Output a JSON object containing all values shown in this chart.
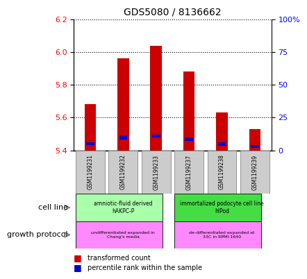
{
  "title": "GDS5080 / 8136662",
  "samples": [
    "GSM1199231",
    "GSM1199232",
    "GSM1199233",
    "GSM1199237",
    "GSM1199238",
    "GSM1199239"
  ],
  "transformed_counts": [
    5.68,
    5.96,
    6.04,
    5.88,
    5.63,
    5.53
  ],
  "percentile_rank_values": [
    3,
    5,
    4,
    4,
    4,
    3
  ],
  "bar_bottom": 5.4,
  "ylim_left": [
    5.4,
    6.2
  ],
  "ylim_right": [
    0,
    100
  ],
  "yticks_left": [
    5.4,
    5.6,
    5.8,
    6.0,
    6.2
  ],
  "yticks_right": [
    0,
    25,
    50,
    75,
    100
  ],
  "ytick_labels_right": [
    "0",
    "25",
    "50",
    "75",
    "100%"
  ],
  "cell_line_groups": [
    {
      "label": "amniotic-fluid derived\nhAKPC-P",
      "start": 0,
      "end": 3,
      "color": "#aaffaa"
    },
    {
      "label": "immortalized podocyte cell line\nhIPod",
      "start": 3,
      "end": 6,
      "color": "#44dd44"
    }
  ],
  "growth_protocol_groups": [
    {
      "label": "undifferentiated expanded in\nChang's media",
      "start": 0,
      "end": 3,
      "color": "#ff88ff"
    },
    {
      "label": "de-differentiated expanded at\n33C in RPMI-1640",
      "start": 3,
      "end": 6,
      "color": "#ff88ff"
    }
  ],
  "red_color": "#cc0000",
  "blue_color": "#0000cc",
  "bar_width": 0.35,
  "sample_box_color": "#cccccc",
  "sample_box_edge": "#888888"
}
